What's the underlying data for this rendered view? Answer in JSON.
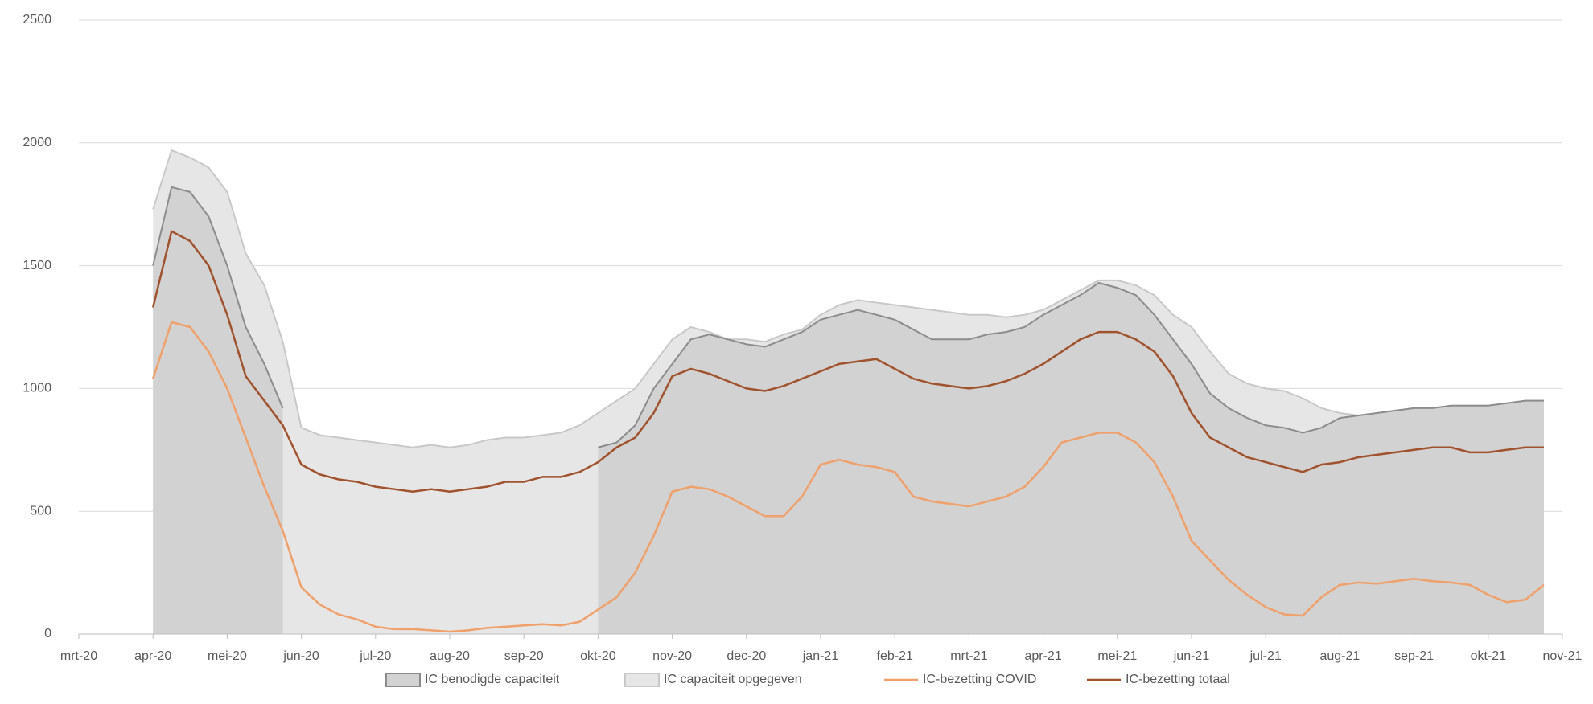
{
  "chart_data": {
    "type": "area-line",
    "categories": [
      "mrt-20",
      null,
      null,
      null,
      "apr-20",
      null,
      null,
      null,
      "mei-20",
      null,
      null,
      null,
      "jun-20",
      null,
      null,
      null,
      "jul-20",
      null,
      null,
      null,
      "aug-20",
      null,
      null,
      null,
      "sep-20",
      null,
      null,
      null,
      "okt-20",
      null,
      null,
      null,
      "nov-20",
      null,
      null,
      null,
      "dec-20",
      null,
      null,
      null,
      "jan-21",
      null,
      null,
      null,
      "feb-21",
      null,
      null,
      null,
      "mrt-21",
      null,
      null,
      null,
      "apr-21",
      null,
      null,
      null,
      "mei-21",
      null,
      null,
      null,
      "jun-21",
      null,
      null,
      null,
      "jul-21",
      null,
      null,
      null,
      "aug-21",
      null,
      null,
      null,
      "sep-21",
      null,
      null,
      null,
      "okt-21",
      null,
      null,
      null,
      "nov-21"
    ],
    "series": [
      {
        "name": "IC capaciteit opgegeven",
        "kind": "area",
        "color": "#e6e6e6",
        "line_color": "#c8c8c8",
        "values": [
          null,
          null,
          null,
          null,
          1730,
          1970,
          1940,
          1900,
          1800,
          1550,
          1420,
          1190,
          840,
          810,
          800,
          790,
          780,
          770,
          760,
          770,
          760,
          770,
          790,
          800,
          800,
          810,
          820,
          850,
          900,
          950,
          1000,
          1100,
          1200,
          1250,
          1230,
          1200,
          1200,
          1190,
          1220,
          1240,
          1300,
          1340,
          1360,
          1350,
          1340,
          1330,
          1320,
          1310,
          1300,
          1300,
          1290,
          1300,
          1320,
          1360,
          1400,
          1440,
          1440,
          1420,
          1380,
          1300,
          1250,
          1150,
          1060,
          1020,
          1000,
          990,
          960,
          920,
          900,
          890,
          900,
          910,
          920,
          920,
          930,
          930,
          930,
          940,
          950,
          950,
          null
        ]
      },
      {
        "name": "IC benodigde capaciteit",
        "kind": "area",
        "color": "#d2d2d2",
        "line_color": "#8c8c8c",
        "values": [
          null,
          null,
          null,
          null,
          1500,
          1820,
          1800,
          1700,
          1500,
          1250,
          1100,
          920,
          null,
          null,
          null,
          null,
          null,
          null,
          null,
          null,
          null,
          null,
          null,
          null,
          null,
          null,
          null,
          null,
          760,
          780,
          850,
          1000,
          1100,
          1200,
          1220,
          1200,
          1180,
          1170,
          1200,
          1230,
          1280,
          1300,
          1320,
          1300,
          1280,
          1240,
          1200,
          1200,
          1200,
          1220,
          1230,
          1250,
          1300,
          1340,
          1380,
          1430,
          1410,
          1380,
          1300,
          1200,
          1100,
          980,
          920,
          880,
          850,
          840,
          820,
          840,
          880,
          890,
          900,
          910,
          920,
          920,
          930,
          930,
          930,
          940,
          950,
          950,
          null
        ]
      },
      {
        "name": "IC-bezetting COVID",
        "kind": "line",
        "color": "#f0a06a",
        "values": [
          null,
          null,
          null,
          null,
          1040,
          1270,
          1250,
          1150,
          1000,
          800,
          600,
          420,
          190,
          120,
          80,
          60,
          30,
          20,
          20,
          15,
          10,
          15,
          25,
          30,
          35,
          40,
          35,
          50,
          100,
          150,
          250,
          400,
          580,
          600,
          590,
          560,
          520,
          480,
          480,
          560,
          690,
          710,
          690,
          680,
          660,
          560,
          540,
          530,
          520,
          540,
          560,
          600,
          680,
          780,
          800,
          820,
          820,
          780,
          700,
          560,
          380,
          300,
          220,
          160,
          110,
          80,
          75,
          150,
          200,
          210,
          205,
          215,
          225,
          215,
          210,
          200,
          160,
          130,
          140,
          200,
          null
        ]
      },
      {
        "name": "IC-bezetting totaal",
        "kind": "line",
        "color": "#a0522d",
        "values": [
          null,
          null,
          null,
          null,
          1330,
          1640,
          1600,
          1500,
          1300,
          1050,
          950,
          850,
          690,
          650,
          630,
          620,
          600,
          590,
          580,
          590,
          580,
          590,
          600,
          620,
          620,
          640,
          640,
          660,
          700,
          760,
          800,
          900,
          1050,
          1080,
          1060,
          1030,
          1000,
          990,
          1010,
          1040,
          1070,
          1100,
          1110,
          1120,
          1080,
          1040,
          1020,
          1010,
          1000,
          1010,
          1030,
          1060,
          1100,
          1150,
          1200,
          1230,
          1230,
          1200,
          1150,
          1050,
          900,
          800,
          760,
          720,
          700,
          680,
          660,
          690,
          700,
          720,
          730,
          740,
          750,
          760,
          760,
          740,
          740,
          750,
          760,
          760,
          null
        ]
      }
    ],
    "ylim": [
      0,
      2500
    ],
    "yticks": [
      0,
      500,
      1000,
      1500,
      2000,
      2500
    ],
    "grid": true
  }
}
